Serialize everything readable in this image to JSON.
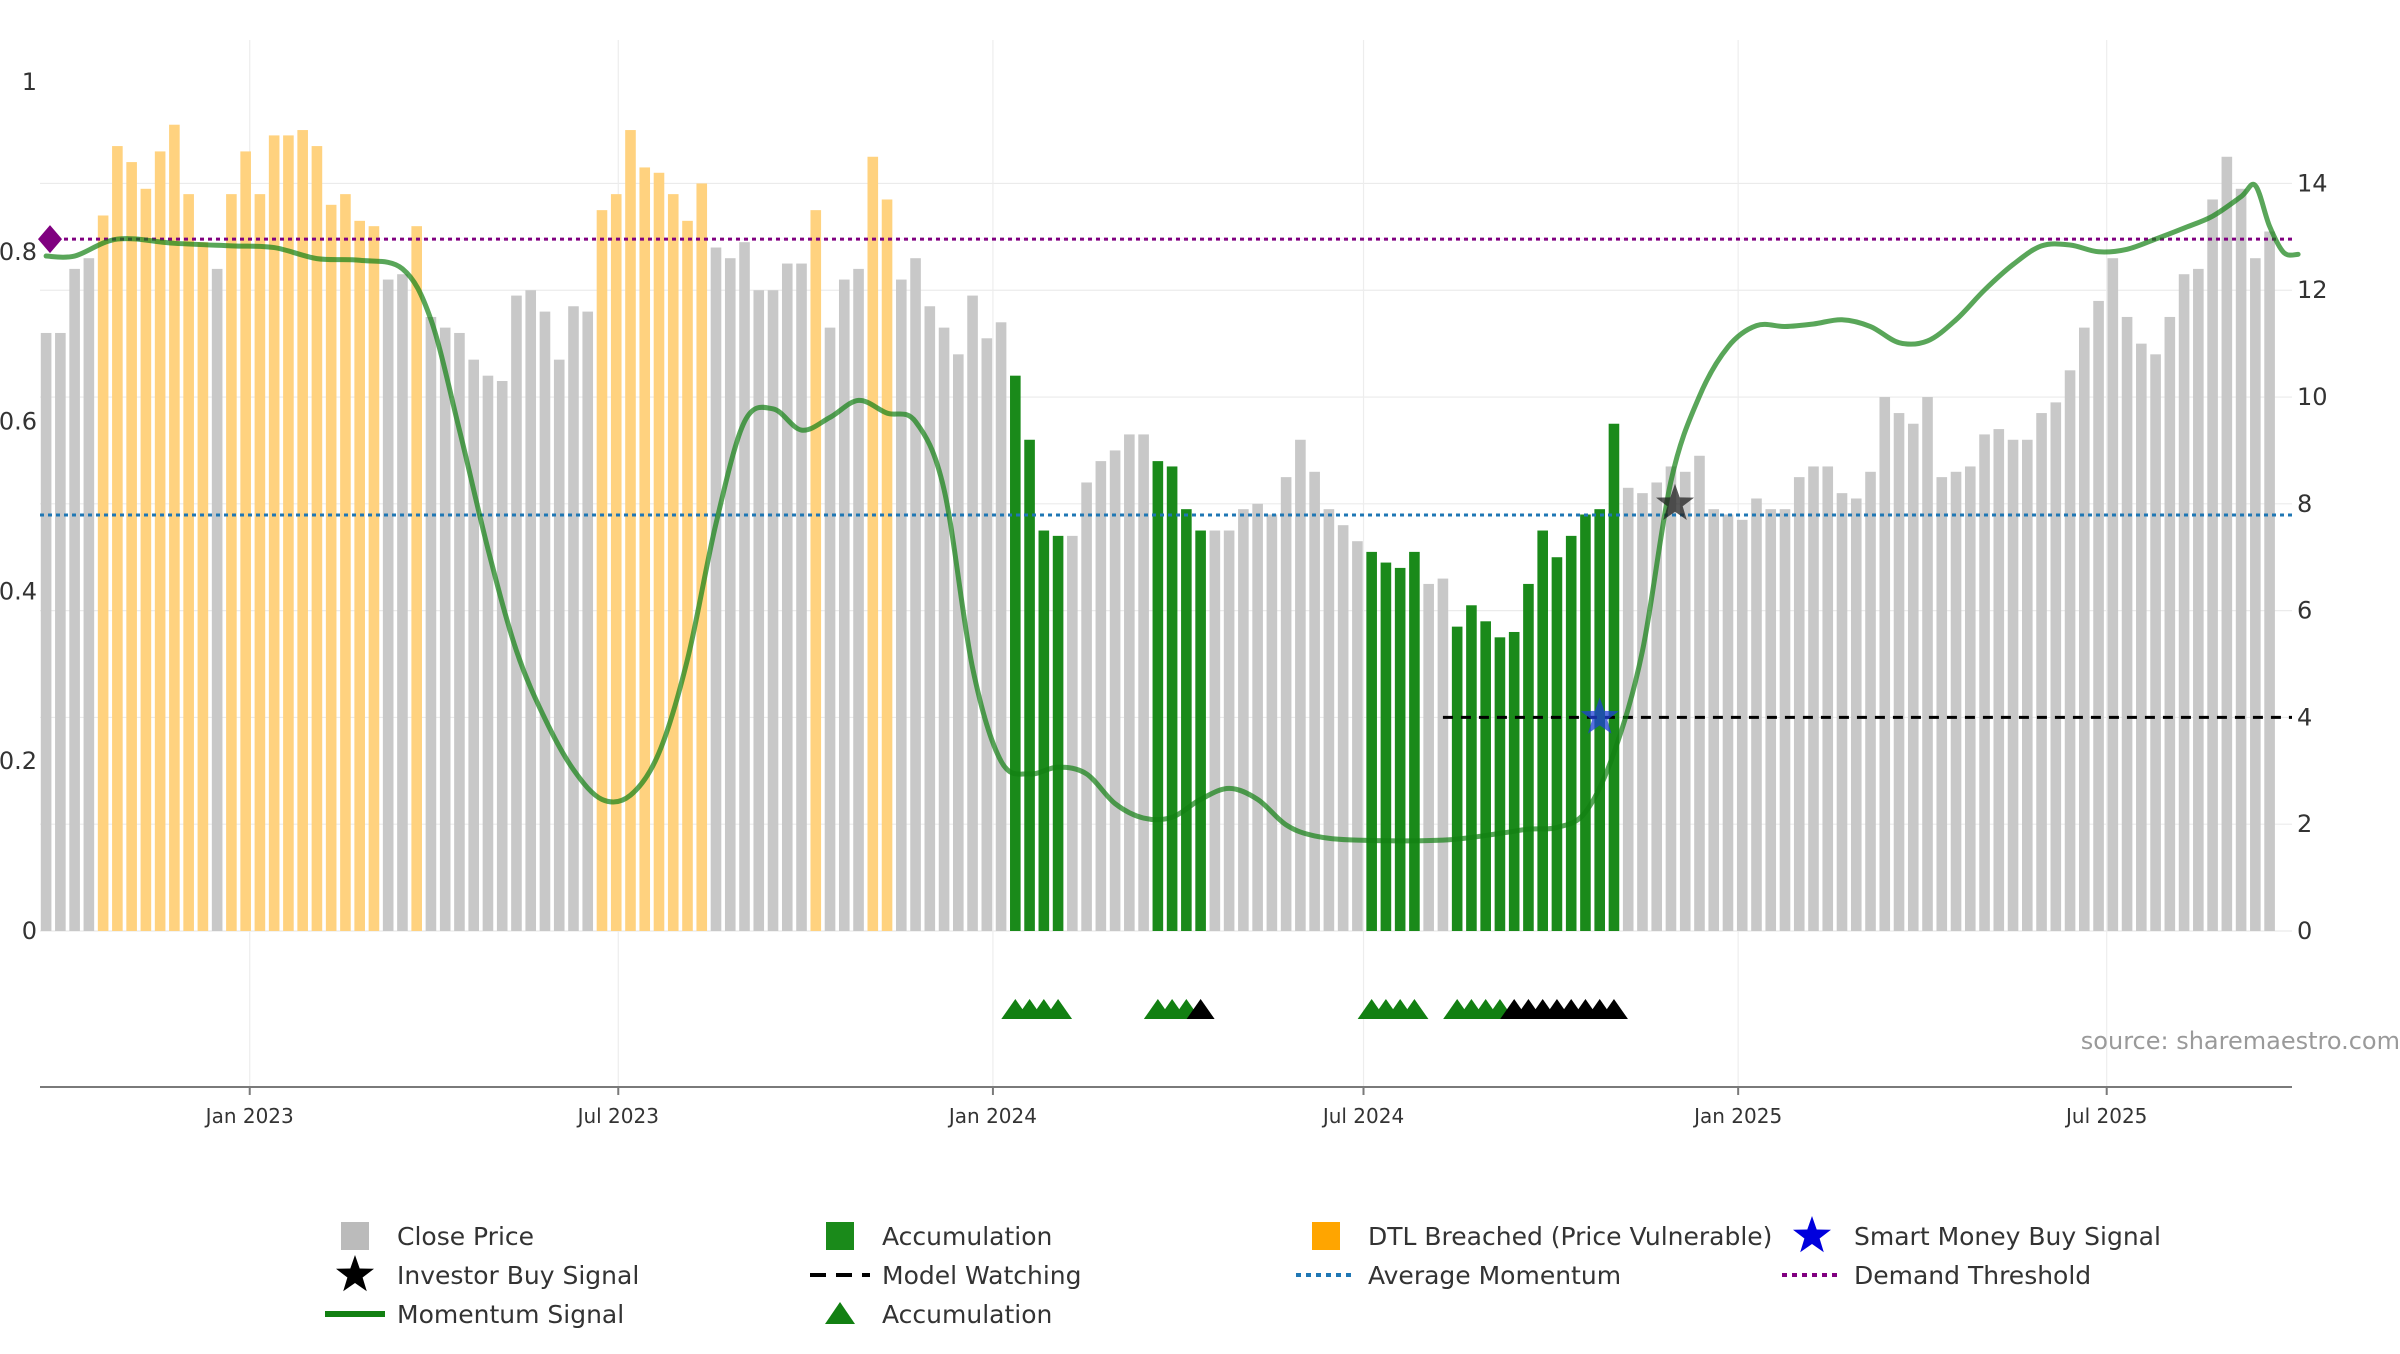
{
  "source_note": "source: sharemaestro.com",
  "chart_data": {
    "type": "bar",
    "left_axis": {
      "min": 0,
      "max": 1,
      "ticks": [
        0,
        0.2,
        0.4,
        0.6,
        0.8,
        1
      ],
      "tick_labels": [
        "0",
        "0.2",
        "0.4",
        "0.6",
        "0.8",
        "1"
      ]
    },
    "right_axis": {
      "min": 0,
      "max": 15.9,
      "ticks": [
        0,
        2,
        4,
        6,
        8,
        10,
        12,
        14
      ],
      "tick_labels": [
        "0",
        "2",
        "4",
        "6",
        "8",
        "10",
        "12",
        "14"
      ]
    },
    "x_axis": {
      "start": "2022-09-20",
      "end": "2025-09-30",
      "ticks": [
        "2023-01-01",
        "2023-07-01",
        "2024-01-01",
        "2024-07-01",
        "2025-01-01",
        "2025-07-01"
      ],
      "tick_labels": [
        "Jan 2023",
        "Jul 2023",
        "Jan 2024",
        "Jul 2024",
        "Jan 2025",
        "Jul 2025"
      ]
    },
    "grid": true,
    "bar_start_date": "2022-09-23",
    "bar_interval_days": 7,
    "series": [
      {
        "name": "Close Price",
        "axis": "right",
        "kind": "bar",
        "values": [
          11.2,
          11.2,
          12.4,
          12.6,
          13.4,
          14.7,
          14.4,
          13.9,
          14.6,
          15.1,
          13.8,
          12.9,
          12.4,
          13.8,
          14.6,
          13.8,
          14.9,
          14.9,
          15.0,
          14.7,
          13.6,
          13.8,
          13.3,
          13.2,
          12.2,
          12.3,
          13.2,
          11.5,
          11.3,
          11.2,
          10.7,
          10.4,
          10.3,
          11.9,
          12.0,
          11.6,
          10.7,
          11.7,
          11.6,
          13.5,
          13.8,
          15.0,
          14.3,
          14.2,
          13.8,
          13.3,
          14.0,
          12.8,
          12.6,
          12.9,
          12.0,
          12.0,
          12.5,
          12.5,
          13.5,
          11.3,
          12.2,
          12.4,
          14.5,
          13.7,
          12.2,
          12.6,
          11.7,
          11.3,
          10.8,
          11.9,
          11.1,
          11.4,
          10.4,
          9.2,
          7.5,
          7.4,
          7.4,
          8.4,
          8.8,
          9.0,
          9.3,
          9.3,
          8.8,
          8.7,
          7.9,
          7.5,
          7.5,
          7.5,
          7.9,
          8.0,
          7.8,
          8.5,
          9.2,
          8.6,
          7.9,
          7.6,
          7.3,
          7.1,
          6.9,
          6.8,
          7.1,
          6.5,
          6.6,
          5.7,
          6.1,
          5.8,
          5.5,
          5.6,
          6.5,
          7.5,
          7.0,
          7.4,
          7.8,
          7.9,
          9.5,
          8.3,
          8.2,
          8.4,
          8.7,
          8.6,
          8.9,
          7.9,
          7.8,
          7.7,
          8.1,
          7.9,
          7.9,
          8.5,
          8.7,
          8.7,
          8.2,
          8.1,
          8.6,
          10.0,
          9.7,
          9.5,
          10.0,
          8.5,
          8.6,
          8.7,
          9.3,
          9.4,
          9.2,
          9.2,
          9.7,
          9.9,
          10.5,
          11.3,
          11.8,
          12.6,
          11.5,
          11.0,
          10.8,
          11.5,
          12.3,
          12.4,
          13.7,
          14.5,
          13.9,
          12.6,
          13.1
        ]
      },
      {
        "name": "Accumulation",
        "axis": "right",
        "kind": "bar_highlight",
        "color": "#1a8a1a",
        "ranges": [
          [
            68,
            71
          ],
          [
            78,
            81
          ],
          [
            93,
            96
          ],
          [
            99,
            110
          ]
        ]
      },
      {
        "name": "DTL Breached (Price Vulnerable)",
        "axis": "right",
        "kind": "bar_highlight",
        "color": "#ffd27f",
        "ranges": [
          [
            4,
            11
          ],
          [
            13,
            23
          ],
          [
            26,
            26
          ],
          [
            39,
            46
          ],
          [
            54,
            54
          ],
          [
            58,
            59
          ],
          [
            163,
            166
          ]
        ]
      },
      {
        "name": "Momentum Signal",
        "axis": "left",
        "kind": "line",
        "color": "#128012",
        "points": [
          [
            "2022-09-23",
            0.795
          ],
          [
            "2022-10-07",
            0.795
          ],
          [
            "2022-10-28",
            0.815
          ],
          [
            "2022-11-25",
            0.81
          ],
          [
            "2022-12-23",
            0.807
          ],
          [
            "2023-01-13",
            0.805
          ],
          [
            "2023-02-03",
            0.792
          ],
          [
            "2023-02-24",
            0.79
          ],
          [
            "2023-03-17",
            0.78
          ],
          [
            "2023-03-31",
            0.72
          ],
          [
            "2023-04-14",
            0.59
          ],
          [
            "2023-04-28",
            0.45
          ],
          [
            "2023-05-12",
            0.33
          ],
          [
            "2023-05-26",
            0.25
          ],
          [
            "2023-06-09",
            0.19
          ],
          [
            "2023-06-23",
            0.155
          ],
          [
            "2023-07-07",
            0.16
          ],
          [
            "2023-07-21",
            0.21
          ],
          [
            "2023-08-04",
            0.32
          ],
          [
            "2023-08-18",
            0.48
          ],
          [
            "2023-09-01",
            0.6
          ],
          [
            "2023-09-15",
            0.615
          ],
          [
            "2023-09-29",
            0.59
          ],
          [
            "2023-10-13",
            0.605
          ],
          [
            "2023-10-27",
            0.625
          ],
          [
            "2023-11-10",
            0.61
          ],
          [
            "2023-11-24",
            0.6
          ],
          [
            "2023-12-08",
            0.52
          ],
          [
            "2023-12-22",
            0.31
          ],
          [
            "2024-01-05",
            0.2
          ],
          [
            "2024-01-19",
            0.185
          ],
          [
            "2024-02-02",
            0.193
          ],
          [
            "2024-02-16",
            0.185
          ],
          [
            "2024-03-01",
            0.15
          ],
          [
            "2024-03-15",
            0.133
          ],
          [
            "2024-03-29",
            0.134
          ],
          [
            "2024-04-12",
            0.155
          ],
          [
            "2024-04-26",
            0.168
          ],
          [
            "2024-05-10",
            0.155
          ],
          [
            "2024-05-24",
            0.125
          ],
          [
            "2024-06-07",
            0.112
          ],
          [
            "2024-06-28",
            0.107
          ],
          [
            "2024-08-09",
            0.107
          ],
          [
            "2024-09-06",
            0.115
          ],
          [
            "2024-09-20",
            0.12
          ],
          [
            "2024-10-04",
            0.122
          ],
          [
            "2024-10-18",
            0.14
          ],
          [
            "2024-11-01",
            0.21
          ],
          [
            "2024-11-15",
            0.33
          ],
          [
            "2024-11-29",
            0.53
          ],
          [
            "2024-12-13",
            0.63
          ],
          [
            "2024-12-27",
            0.688
          ],
          [
            "2025-01-10",
            0.713
          ],
          [
            "2025-01-24",
            0.712
          ],
          [
            "2025-02-07",
            0.715
          ],
          [
            "2025-02-21",
            0.72
          ],
          [
            "2025-03-07",
            0.712
          ],
          [
            "2025-03-21",
            0.693
          ],
          [
            "2025-04-04",
            0.695
          ],
          [
            "2025-04-18",
            0.72
          ],
          [
            "2025-05-02",
            0.755
          ],
          [
            "2025-05-16",
            0.785
          ],
          [
            "2025-05-30",
            0.807
          ],
          [
            "2025-06-13",
            0.808
          ],
          [
            "2025-06-27",
            0.8
          ],
          [
            "2025-07-11",
            0.803
          ],
          [
            "2025-07-25",
            0.815
          ],
          [
            "2025-08-08",
            0.828
          ],
          [
            "2025-08-22",
            0.842
          ],
          [
            "2025-09-05",
            0.865
          ],
          [
            "2025-09-12",
            0.878
          ],
          [
            "2025-09-19",
            0.83
          ],
          [
            "2025-09-26",
            0.799
          ],
          [
            "2025-10-03",
            0.797
          ]
        ]
      },
      {
        "name": "Average Momentum",
        "axis": "left",
        "kind": "hline",
        "color": "#1f77b4",
        "value": 0.49
      },
      {
        "name": "Demand Threshold",
        "axis": "left",
        "kind": "hline",
        "color": "#800080",
        "value": 0.815
      },
      {
        "name": "Model Watching",
        "axis": "right",
        "kind": "dashed_segment",
        "color": "#000000",
        "value": 4.0,
        "from": "2024-08-09",
        "to": "2025-10-03"
      },
      {
        "name": "Smart Money Buy Signal",
        "axis": "right",
        "kind": "marker",
        "marker": "star",
        "color": "#1f3fd6",
        "points": [
          [
            "2024-10-25",
            4.0
          ]
        ]
      },
      {
        "name": "Investor Buy Signal",
        "axis": "right",
        "kind": "marker",
        "marker": "star",
        "color": "#222222",
        "points": [
          [
            "2024-12-01",
            8.0
          ]
        ]
      },
      {
        "name": "Accumulation",
        "kind": "triangle_markers",
        "green_indices": [
          68,
          69,
          70,
          71,
          78,
          79,
          80,
          93,
          94,
          95,
          96,
          99,
          100,
          101,
          102
        ],
        "black_indices": [
          81,
          103,
          104,
          105,
          106,
          107,
          108,
          109,
          110
        ]
      }
    ]
  },
  "legend": [
    {
      "label": "Close Price",
      "symbol": "square",
      "color": "#bbbbbb"
    },
    {
      "label": "Accumulation",
      "symbol": "square",
      "color": "#1a8a1a"
    },
    {
      "label": "DTL Breached (Price Vulnerable)",
      "symbol": "square",
      "color": "#ffa500"
    },
    {
      "label": "Smart Money Buy Signal",
      "symbol": "star",
      "color": "#0000dd"
    },
    {
      "label": "Investor Buy Signal",
      "symbol": "star",
      "color": "#000000"
    },
    {
      "label": "Model Watching",
      "symbol": "dash",
      "color": "#000000"
    },
    {
      "label": "Average Momentum",
      "symbol": "dotted",
      "color": "#1f77b4"
    },
    {
      "label": "Demand Threshold",
      "symbol": "dotted",
      "color": "#800080"
    },
    {
      "label": "Momentum Signal",
      "symbol": "line",
      "color": "#128012"
    },
    {
      "label": "Accumulation",
      "symbol": "triangle",
      "color": "#128012"
    }
  ]
}
